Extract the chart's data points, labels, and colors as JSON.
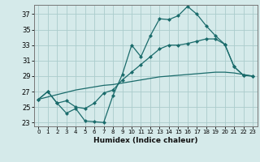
{
  "xlabel": "Humidex (Indice chaleur)",
  "xlim": [
    -0.5,
    23.5
  ],
  "ylim": [
    22.5,
    38.2
  ],
  "yticks": [
    23,
    25,
    27,
    29,
    31,
    33,
    35,
    37
  ],
  "xticks": [
    0,
    1,
    2,
    3,
    4,
    5,
    6,
    7,
    8,
    9,
    10,
    11,
    12,
    13,
    14,
    15,
    16,
    17,
    18,
    19,
    20,
    21,
    22,
    23
  ],
  "bg_color": "#d5eaea",
  "grid_color": "#aacccc",
  "line_color": "#1a6b6b",
  "line1_y": [
    26.0,
    27.0,
    25.5,
    24.2,
    24.8,
    23.2,
    23.1,
    23.0,
    26.5,
    29.2,
    33.0,
    31.5,
    34.2,
    36.4,
    36.3,
    36.8,
    38.0,
    37.0,
    35.5,
    34.2,
    33.1,
    30.2,
    29.1,
    29.0
  ],
  "line2_y": [
    26.0,
    27.0,
    25.5,
    25.8,
    25.0,
    24.8,
    25.5,
    26.8,
    27.2,
    28.5,
    29.5,
    30.5,
    31.5,
    32.5,
    33.0,
    33.0,
    33.2,
    33.5,
    33.8,
    33.8,
    33.1,
    30.2,
    29.1,
    29.0
  ],
  "line3_y": [
    26.0,
    26.3,
    26.6,
    26.9,
    27.2,
    27.4,
    27.6,
    27.8,
    27.9,
    28.1,
    28.3,
    28.5,
    28.7,
    28.9,
    29.0,
    29.1,
    29.2,
    29.3,
    29.4,
    29.5,
    29.5,
    29.4,
    29.2,
    29.0
  ]
}
